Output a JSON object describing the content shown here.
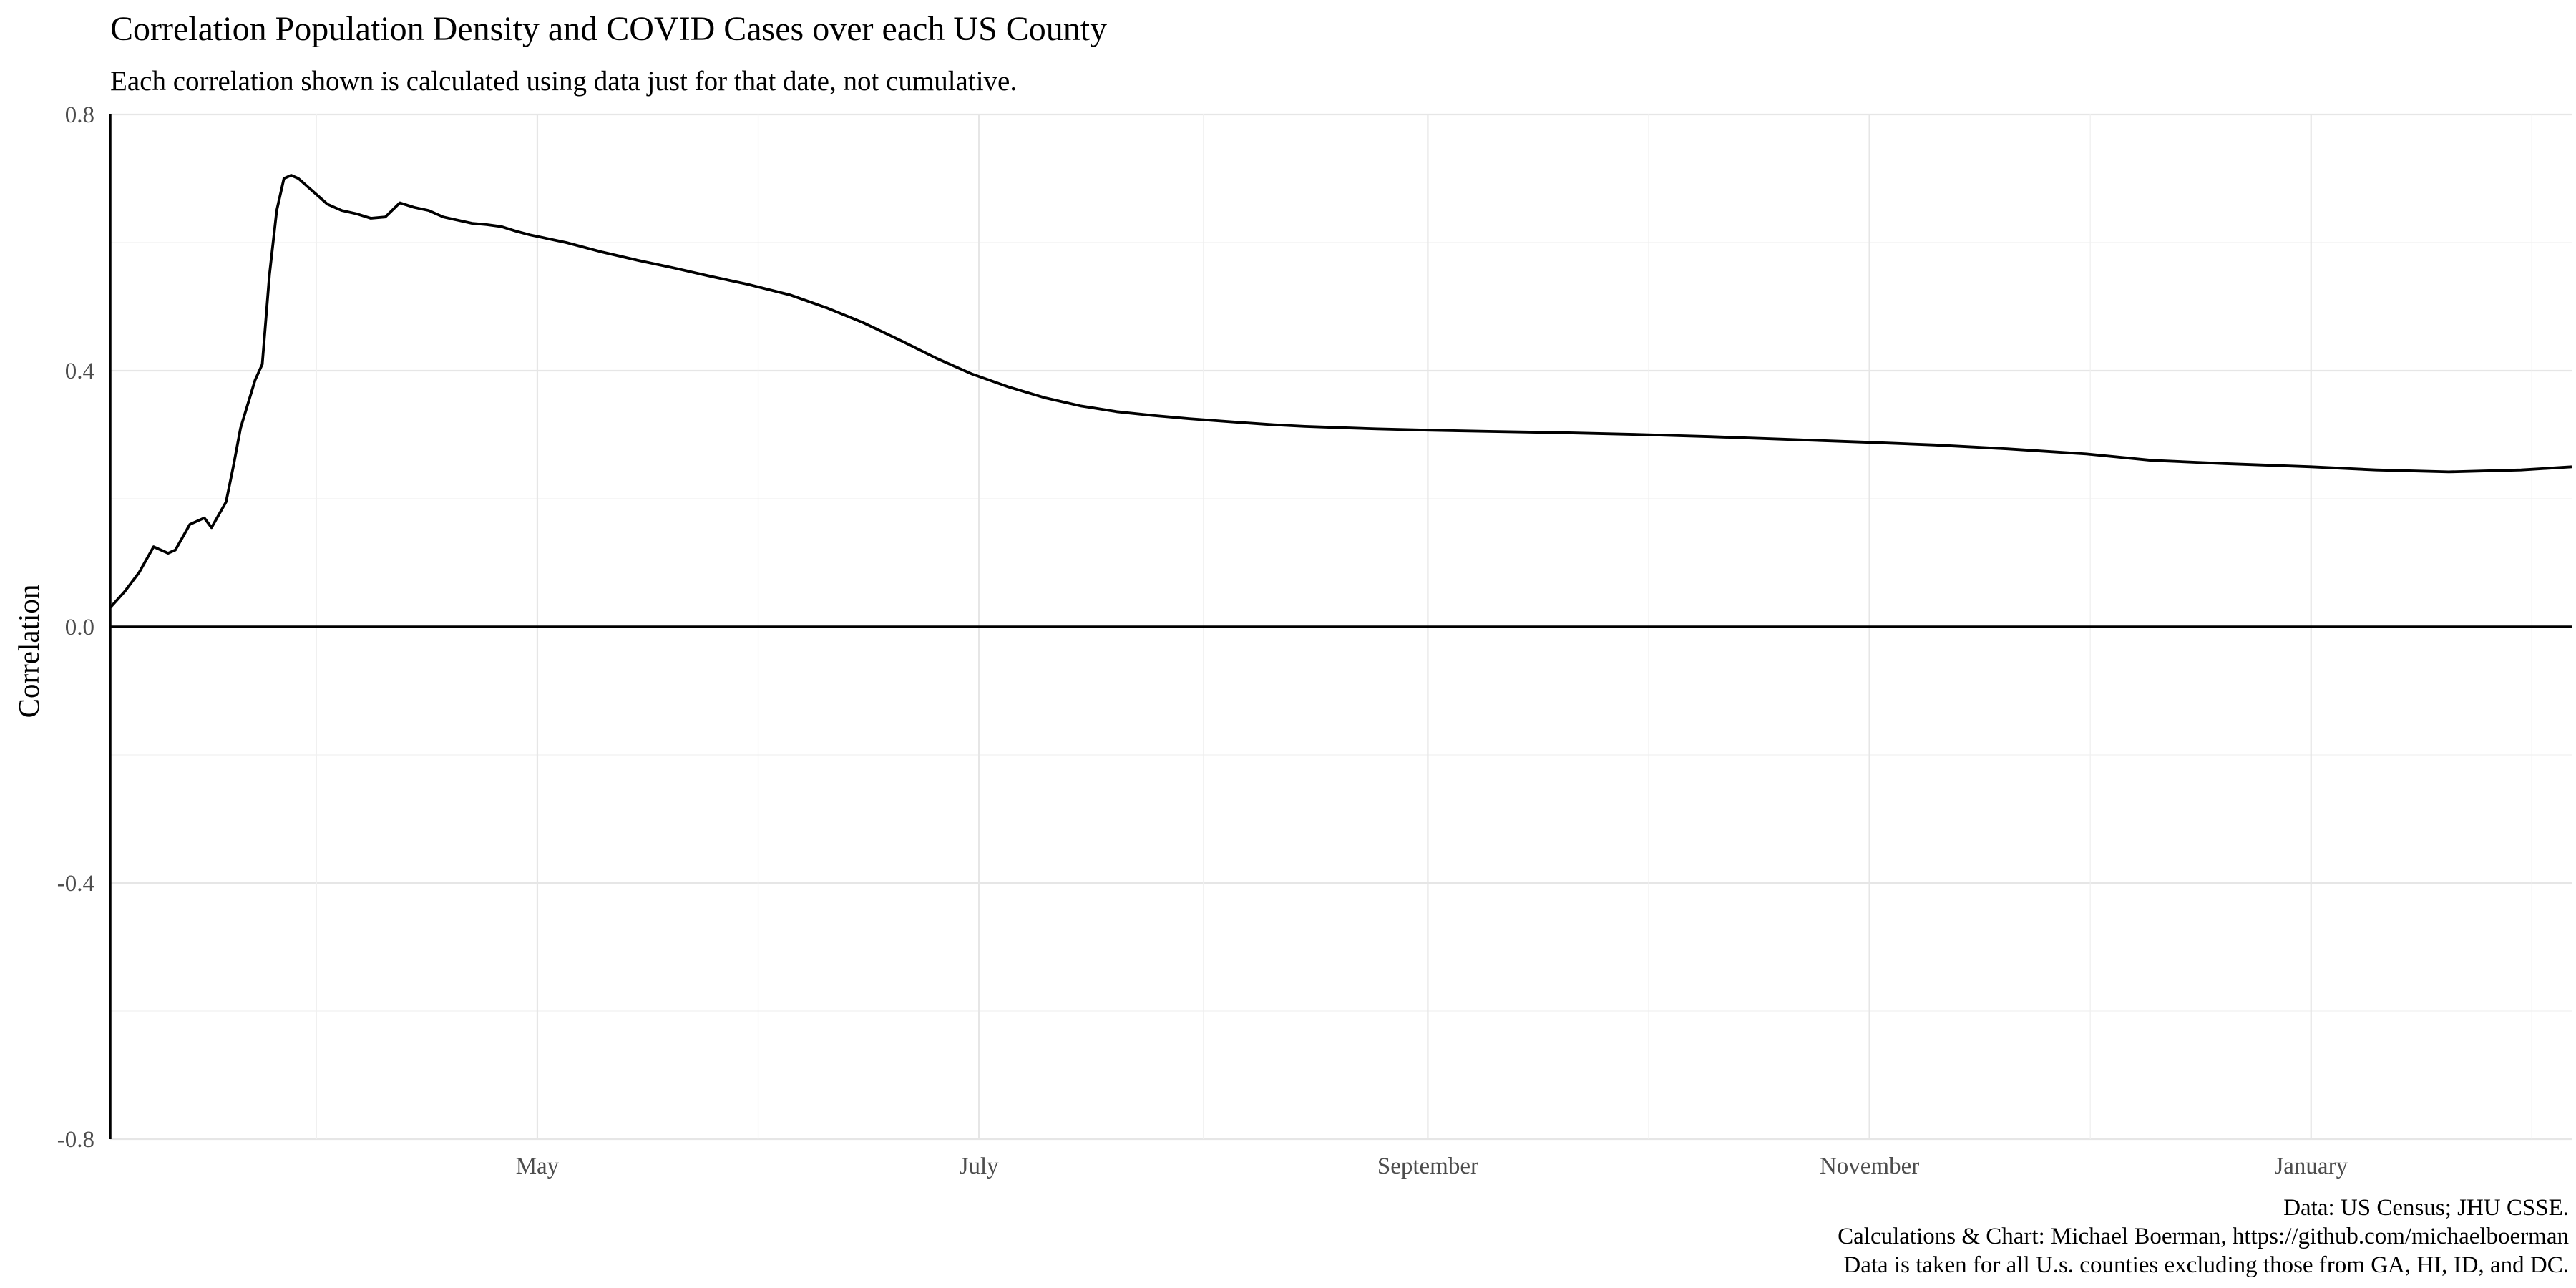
{
  "chart_data": {
    "type": "line",
    "title": "Correlation Population Density and COVID Cases over each US County",
    "subtitle": "Each correlation shown is calculated using data just for that date, not cumulative.",
    "xlabel": "",
    "ylabel": "Correlation",
    "ylim": [
      -0.8,
      0.8
    ],
    "yticks": [
      -0.8,
      -0.4,
      0.0,
      0.4,
      0.8
    ],
    "ytick_labels": [
      "-0.8",
      "-0.4",
      "0.0",
      "0.4",
      "0.8"
    ],
    "xlim": [
      "2020-03-03",
      "2021-02-06"
    ],
    "xticks": [
      "2020-05-01",
      "2020-07-01",
      "2020-09-01",
      "2020-11-01",
      "2021-01-01"
    ],
    "xtick_labels": [
      "May",
      "July",
      "September",
      "November",
      "January"
    ],
    "hline": 0,
    "grid": true,
    "caption": [
      "Data: US Census; JHU CSSE.",
      "Calculations & Chart: Michael Boerman, https://github.com/michaelboerman",
      "Data is taken for all U.s. counties excluding those from GA, HI, ID, and DC."
    ],
    "series": [
      {
        "x": [
          "2020-03-03",
          "2020-03-05",
          "2020-03-07",
          "2020-03-09",
          "2020-03-11",
          "2020-03-12",
          "2020-03-14",
          "2020-03-16",
          "2020-03-17",
          "2020-03-19",
          "2020-03-20",
          "2020-03-21",
          "2020-03-23",
          "2020-03-24",
          "2020-03-25",
          "2020-03-26",
          "2020-03-27",
          "2020-03-28",
          "2020-03-29",
          "2020-03-30",
          "2020-03-31",
          "2020-04-01",
          "2020-04-02",
          "2020-04-03",
          "2020-04-04",
          "2020-04-06",
          "2020-04-08",
          "2020-04-10",
          "2020-04-12",
          "2020-04-14",
          "2020-04-16",
          "2020-04-18",
          "2020-04-20",
          "2020-04-22",
          "2020-04-24",
          "2020-04-26",
          "2020-04-28",
          "2020-04-30",
          "2020-05-05",
          "2020-05-10",
          "2020-05-15",
          "2020-05-20",
          "2020-05-25",
          "2020-05-30",
          "2020-06-05",
          "2020-06-10",
          "2020-06-15",
          "2020-06-20",
          "2020-06-25",
          "2020-06-30",
          "2020-07-05",
          "2020-07-10",
          "2020-07-15",
          "2020-07-20",
          "2020-07-25",
          "2020-07-30",
          "2020-08-05",
          "2020-08-10",
          "2020-08-15",
          "2020-08-20",
          "2020-08-25",
          "2020-09-01",
          "2020-09-10",
          "2020-09-20",
          "2020-10-01",
          "2020-10-10",
          "2020-10-20",
          "2020-11-01",
          "2020-11-10",
          "2020-11-20",
          "2020-12-01",
          "2020-12-10",
          "2020-12-20",
          "2021-01-01",
          "2021-01-10",
          "2021-01-20",
          "2021-01-30",
          "2021-02-06"
        ],
        "y": [
          0.03,
          0.055,
          0.085,
          0.125,
          0.115,
          0.12,
          0.16,
          0.17,
          0.155,
          0.195,
          0.25,
          0.31,
          0.385,
          0.41,
          0.55,
          0.65,
          0.7,
          0.705,
          0.7,
          0.69,
          0.68,
          0.67,
          0.66,
          0.655,
          0.65,
          0.645,
          0.638,
          0.64,
          0.662,
          0.655,
          0.65,
          0.64,
          0.635,
          0.63,
          0.628,
          0.625,
          0.618,
          0.612,
          0.6,
          0.585,
          0.572,
          0.56,
          0.547,
          0.535,
          0.518,
          0.498,
          0.475,
          0.448,
          0.42,
          0.395,
          0.375,
          0.358,
          0.345,
          0.336,
          0.33,
          0.325,
          0.32,
          0.316,
          0.313,
          0.311,
          0.309,
          0.307,
          0.305,
          0.303,
          0.3,
          0.297,
          0.293,
          0.288,
          0.284,
          0.278,
          0.27,
          0.26,
          0.255,
          0.25,
          0.245,
          0.242,
          0.245,
          0.25
        ]
      }
    ]
  }
}
